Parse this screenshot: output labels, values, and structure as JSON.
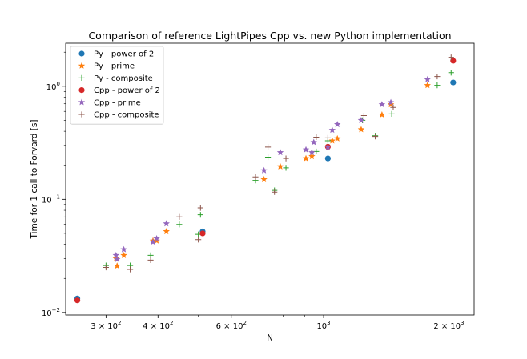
{
  "chart_data": {
    "type": "scatter",
    "title": "Comparison of reference LightPipes Cpp vs. new Python implementation",
    "xlabel": "N",
    "ylabel": "Time for 1 call to Forvard [s]",
    "xscale": "log",
    "yscale": "log",
    "xlim": [
      240,
      2300
    ],
    "ylim": [
      0.0095,
      2.4
    ],
    "grid": false,
    "legend_position": "top-left",
    "x_ticks": [
      {
        "value": 300,
        "base": "3 × 10",
        "exp": "2"
      },
      {
        "value": 400,
        "base": "4 × 10",
        "exp": "2"
      },
      {
        "value": 600,
        "base": "6 × 10",
        "exp": "2"
      },
      {
        "value": 1000,
        "base": "10",
        "exp": "3"
      },
      {
        "value": 2000,
        "base": "2 × 10",
        "exp": "3"
      }
    ],
    "y_ticks": [
      {
        "value": 0.01,
        "base": "10",
        "exp": "−2"
      },
      {
        "value": 0.1,
        "base": "10",
        "exp": "−1"
      },
      {
        "value": 1,
        "base": "10",
        "exp": "0"
      }
    ],
    "series": [
      {
        "name": "Py - power of 2",
        "marker": "circle",
        "color": "#1f77b4",
        "points": [
          [
            256,
            0.0133
          ],
          [
            512,
            0.052
          ],
          [
            1024,
            0.23
          ],
          [
            2048,
            1.08
          ]
        ]
      },
      {
        "name": "Py - prime",
        "marker": "star",
        "color": "#ff7f0e",
        "points": [
          [
            317,
            0.03
          ],
          [
            319,
            0.0258
          ],
          [
            331,
            0.032
          ],
          [
            389,
            0.043
          ],
          [
            397,
            0.043
          ],
          [
            419,
            0.052
          ],
          [
            719,
            0.15
          ],
          [
            787,
            0.195
          ],
          [
            907,
            0.23
          ],
          [
            937,
            0.24
          ],
          [
            1049,
            0.33
          ],
          [
            1079,
            0.345
          ],
          [
            1231,
            0.415
          ],
          [
            1381,
            0.56
          ],
          [
            1451,
            0.69
          ],
          [
            1777,
            1.02
          ]
        ]
      },
      {
        "name": "Py - composite",
        "marker": "plus",
        "color": "#2ca02c",
        "points": [
          [
            300,
            0.026
          ],
          [
            343,
            0.026
          ],
          [
            384,
            0.032
          ],
          [
            450,
            0.06
          ],
          [
            500,
            0.049
          ],
          [
            506,
            0.073
          ],
          [
            686,
            0.147
          ],
          [
            735,
            0.236
          ],
          [
            762,
            0.12
          ],
          [
            812,
            0.19
          ],
          [
            960,
            0.265
          ],
          [
            1024,
            0.33
          ],
          [
            1240,
            0.5
          ],
          [
            1331,
            0.365
          ],
          [
            1458,
            0.57
          ],
          [
            1875,
            1.02
          ],
          [
            2025,
            1.32
          ]
        ]
      },
      {
        "name": "Cpp - power of 2",
        "marker": "circle",
        "color": "#d62728",
        "points": [
          [
            256,
            0.0128
          ],
          [
            512,
            0.05
          ],
          [
            1024,
            0.292
          ],
          [
            2048,
            1.68
          ]
        ]
      },
      {
        "name": "Cpp - prime",
        "marker": "star",
        "color": "#9467bd",
        "points": [
          [
            317,
            0.032
          ],
          [
            319,
            0.0295
          ],
          [
            331,
            0.036
          ],
          [
            389,
            0.042
          ],
          [
            397,
            0.045
          ],
          [
            419,
            0.061
          ],
          [
            719,
            0.18
          ],
          [
            787,
            0.26
          ],
          [
            907,
            0.275
          ],
          [
            937,
            0.26
          ],
          [
            947,
            0.32
          ],
          [
            1024,
            0.29
          ],
          [
            1049,
            0.41
          ],
          [
            1079,
            0.46
          ],
          [
            1231,
            0.5
          ],
          [
            1381,
            0.69
          ],
          [
            1451,
            0.72
          ],
          [
            1777,
            1.15
          ]
        ]
      },
      {
        "name": "Cpp - composite",
        "marker": "plus",
        "color": "#8c564b",
        "points": [
          [
            300,
            0.025
          ],
          [
            343,
            0.024
          ],
          [
            384,
            0.029
          ],
          [
            450,
            0.07
          ],
          [
            500,
            0.044
          ],
          [
            506,
            0.084
          ],
          [
            686,
            0.158
          ],
          [
            735,
            0.29
          ],
          [
            762,
            0.116
          ],
          [
            812,
            0.23
          ],
          [
            960,
            0.355
          ],
          [
            1024,
            0.35
          ],
          [
            1250,
            0.55
          ],
          [
            1331,
            0.36
          ],
          [
            1470,
            0.65
          ],
          [
            1875,
            1.22
          ],
          [
            2025,
            1.8
          ]
        ]
      }
    ]
  }
}
